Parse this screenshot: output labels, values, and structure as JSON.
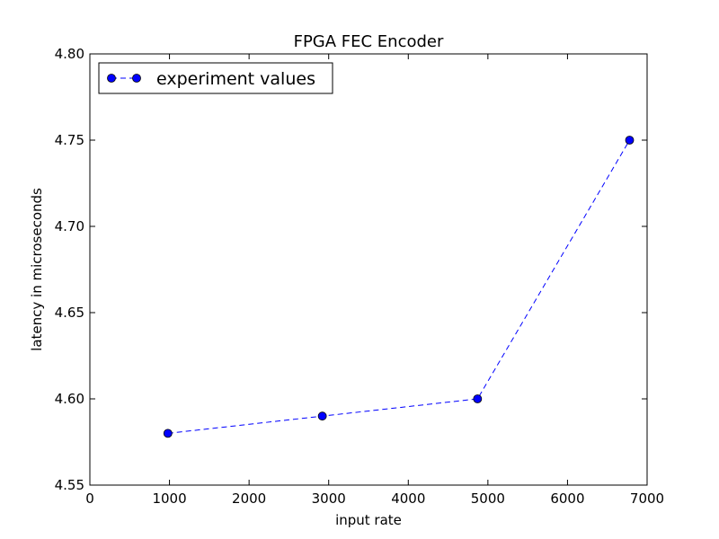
{
  "chart_data": {
    "type": "line",
    "title": "FPGA FEC Encoder",
    "xlabel": "input rate",
    "ylabel": "latency in microseconds",
    "xlim": [
      0,
      7000
    ],
    "ylim": [
      4.55,
      4.8
    ],
    "x_ticks": [
      0,
      1000,
      2000,
      3000,
      4000,
      5000,
      6000,
      7000
    ],
    "x_tick_labels": [
      "0",
      "1000",
      "2000",
      "3000",
      "4000",
      "5000",
      "6000",
      "7000"
    ],
    "y_ticks": [
      4.55,
      4.6,
      4.65,
      4.7,
      4.75,
      4.8
    ],
    "y_tick_labels": [
      "4.55",
      "4.60",
      "4.65",
      "4.70",
      "4.75",
      "4.80"
    ],
    "grid": false,
    "legend_position": "top-left",
    "series": [
      {
        "name": "experiment values",
        "color": "#0000ff",
        "line_style": "dashed",
        "marker": "circle",
        "x": [
          980,
          2920,
          4870,
          6780
        ],
        "y": [
          4.58,
          4.59,
          4.6,
          4.75
        ]
      }
    ]
  }
}
